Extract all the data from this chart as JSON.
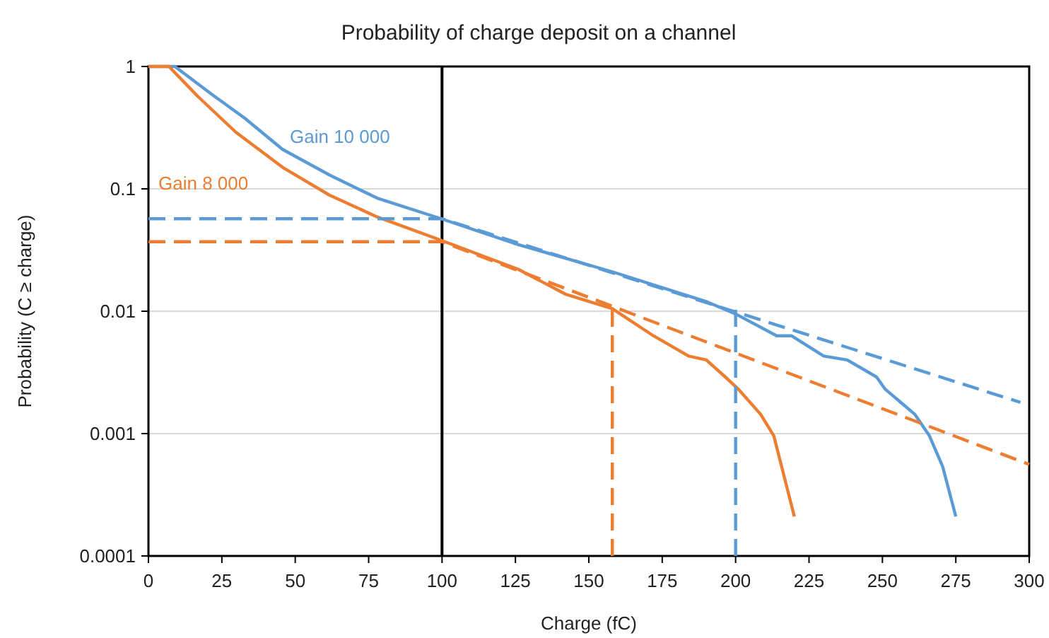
{
  "chart_data": {
    "type": "line",
    "title": "Probability of charge deposit on a channel",
    "xlabel": "Charge (fC)",
    "ylabel": "Probability (C ≥ charge)",
    "log": "y",
    "grid": "y",
    "line_style": "solid",
    "xlim": [
      0,
      300
    ],
    "xticks": [
      0,
      25,
      50,
      75,
      100,
      125,
      150,
      175,
      200,
      225,
      250,
      275,
      300
    ],
    "ylim": [
      0.0001,
      1
    ],
    "yticks": [
      0.0001,
      0.001,
      0.01,
      0.1,
      1
    ],
    "ref_lines": [
      {
        "axis": "x",
        "value": 100,
        "color": "#000000"
      }
    ],
    "series": [
      {
        "name": "Gain 10 000",
        "color": "#5b9bd5",
        "x": [
          0,
          9,
          21.7,
          32.7,
          45.7,
          61.6,
          77.9,
          99.7,
          126,
          158,
          190,
          200,
          214,
          219,
          230,
          238,
          248,
          251,
          261,
          266,
          270.5,
          275
        ],
        "values": [
          1,
          1,
          0.59,
          0.38,
          0.21,
          0.13,
          0.084,
          0.057,
          0.035,
          0.021,
          0.012,
          0.0095,
          0.0063,
          0.0063,
          0.0043,
          0.004,
          0.0029,
          0.0023,
          0.00144,
          0.00096,
          0.00054,
          0.00021
        ]
      },
      {
        "name": "Gain 8 000",
        "color": "#ed7d31",
        "x": [
          0,
          7,
          16.8,
          29.8,
          45.7,
          61.6,
          77.9,
          99.7,
          126,
          142,
          158,
          172,
          184,
          190,
          196.5,
          201,
          208.5,
          213,
          220
        ],
        "values": [
          1,
          1,
          0.57,
          0.29,
          0.15,
          0.089,
          0.059,
          0.038,
          0.022,
          0.0138,
          0.0105,
          0.0063,
          0.0043,
          0.004,
          0.0029,
          0.0023,
          0.00144,
          0.00096,
          0.00021
        ]
      },
      {
        "color": "#5b9bd5",
        "line_style": "dashed",
        "x": [
          0,
          100,
          297
        ],
        "values": [
          0.057,
          0.057,
          0.0018
        ]
      },
      {
        "color": "#ed7d31",
        "line_style": "dashed",
        "x": [
          0,
          100,
          300
        ],
        "values": [
          0.037,
          0.037,
          0.00056
        ]
      },
      {
        "color": "#ed7d31",
        "line_style": "dashed",
        "x": [
          158,
          158
        ],
        "values": [
          0.0001,
          0.011
        ]
      },
      {
        "color": "#5b9bd5",
        "line_style": "dashed",
        "x": [
          200,
          200
        ],
        "values": [
          0.0001,
          0.011
        ]
      }
    ]
  }
}
